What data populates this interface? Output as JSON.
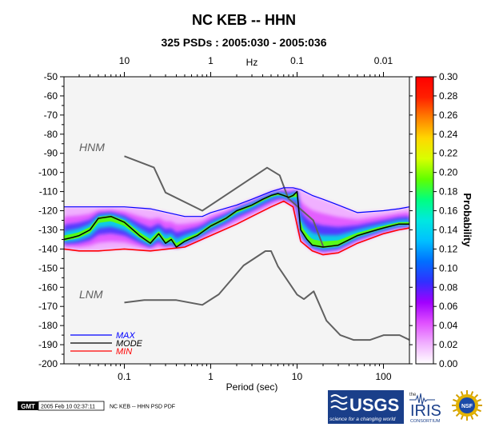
{
  "header": {
    "title": "NC KEB -- HHN",
    "subtitle": "325 PSDs : 2005:030 - 2005:036"
  },
  "chart_data": {
    "type": "heatmap",
    "xlabel": "Period (sec)",
    "x_scale": "log",
    "xlim": [
      0.02,
      200
    ],
    "x_ticks": [
      "0.1",
      "1",
      "10",
      "100"
    ],
    "top_axis": {
      "label": "Hz",
      "ticks": [
        "10",
        "1",
        "0.1",
        "0.01"
      ]
    },
    "ylim": [
      -200,
      -50
    ],
    "y_ticks": [
      "-50",
      "-60",
      "-70",
      "-80",
      "-90",
      "-100",
      "-110",
      "-120",
      "-130",
      "-140",
      "-150",
      "-160",
      "-170",
      "-180",
      "-190",
      "-200"
    ],
    "colorbar": {
      "label": "Probability",
      "range": [
        0,
        0.3
      ],
      "ticks": [
        "0.00",
        "0.02",
        "0.04",
        "0.06",
        "0.08",
        "0.10",
        "0.12",
        "0.14",
        "0.16",
        "0.18",
        "0.20",
        "0.22",
        "0.24",
        "0.26",
        "0.28",
        "0.30"
      ],
      "colors": [
        "#ffffff",
        "#f0b0ff",
        "#e050ff",
        "#a000ff",
        "#3030ff",
        "#0070ff",
        "#00c0ff",
        "#00e8e0",
        "#00ff80",
        "#60ff00",
        "#d8ff00",
        "#ffd800",
        "#ff8000",
        "#ff2000",
        "#ff0000"
      ]
    },
    "legend": {
      "placement": "bottom-left",
      "entries": [
        {
          "label": "MAX",
          "color": "#0000ff"
        },
        {
          "label": "MODE",
          "color": "#000000"
        },
        {
          "label": "MIN",
          "color": "#ff0000"
        }
      ]
    },
    "annotations": [
      "HNM",
      "LNM"
    ],
    "series": [
      {
        "name": "HNM",
        "color": "#606060",
        "x": [
          0.1,
          0.22,
          0.3,
          0.8,
          4.5,
          6.3,
          7.9,
          15.4,
          20,
          20.1
        ],
        "y": [
          -91.5,
          -97.4,
          -110.5,
          -120,
          -97.5,
          -101.5,
          -113.5,
          -125,
          -138.5,
          -139
        ]
      },
      {
        "name": "LNM",
        "color": "#606060",
        "x": [
          0.1,
          0.17,
          0.4,
          0.8,
          1.24,
          2.4,
          4.3,
          5,
          6,
          10,
          12,
          15.6,
          21.9,
          31.6,
          45,
          70,
          101,
          154,
          200
        ],
        "y": [
          -168,
          -166.7,
          -166.7,
          -169.2,
          -163.7,
          -148.6,
          -141.1,
          -141.1,
          -149,
          -163.8,
          -166.2,
          -162.1,
          -177.5,
          -185,
          -187.5,
          -187.5,
          -185,
          -185,
          -187.5
        ]
      },
      {
        "name": "MAX",
        "color": "#0000ff",
        "x": [
          0.02,
          0.05,
          0.1,
          0.2,
          0.5,
          0.8,
          1,
          2,
          3,
          5,
          7,
          9,
          11,
          15,
          20,
          30,
          50,
          100,
          150,
          200
        ],
        "y": [
          -118,
          -118,
          -118,
          -119,
          -123,
          -123,
          -121,
          -117,
          -114,
          -110,
          -108,
          -108,
          -109,
          -112,
          -114,
          -117,
          -121,
          -120,
          -119,
          -118
        ]
      },
      {
        "name": "MODE",
        "color": "#000000",
        "x": [
          0.02,
          0.025,
          0.03,
          0.04,
          0.05,
          0.07,
          0.1,
          0.15,
          0.2,
          0.25,
          0.3,
          0.35,
          0.4,
          0.5,
          0.7,
          1,
          1.5,
          2,
          3,
          4,
          5,
          6,
          7,
          8,
          9,
          10,
          11,
          13,
          15,
          20,
          30,
          50,
          70,
          100,
          150,
          200
        ],
        "y": [
          -135,
          -134,
          -133,
          -130,
          -124,
          -123,
          -126,
          -133,
          -137,
          -132,
          -137,
          -135,
          -139,
          -136,
          -133,
          -128,
          -124,
          -120,
          -117,
          -114,
          -112,
          -111,
          -112,
          -113,
          -112,
          -110,
          -130,
          -135,
          -138,
          -139,
          -138,
          -133,
          -131,
          -129,
          -127,
          -127
        ]
      },
      {
        "name": "MIN",
        "color": "#ff0000",
        "x": [
          0.02,
          0.03,
          0.05,
          0.1,
          0.2,
          0.5,
          1,
          2,
          3,
          5,
          7,
          9,
          11,
          15,
          20,
          30,
          50,
          100,
          150,
          200
        ],
        "y": [
          -140,
          -141,
          -141,
          -140,
          -141,
          -139,
          -133,
          -127,
          -123,
          -118,
          -115,
          -118,
          -136,
          -141,
          -143,
          -142,
          -137,
          -132,
          -130,
          -129
        ]
      }
    ]
  },
  "footer": {
    "gmt_badge": "GMT",
    "timestamp": "2005 Feb 10 02:37:11",
    "caption": "NC KEB -- HHN PSD PDF",
    "logos": {
      "usgs": "USGS",
      "usgs_tagline": "science for a changing world",
      "iris_prefix": "the",
      "iris": "IRIS",
      "iris_sub": "CONSORTIUM",
      "nsf": "NSF"
    }
  }
}
